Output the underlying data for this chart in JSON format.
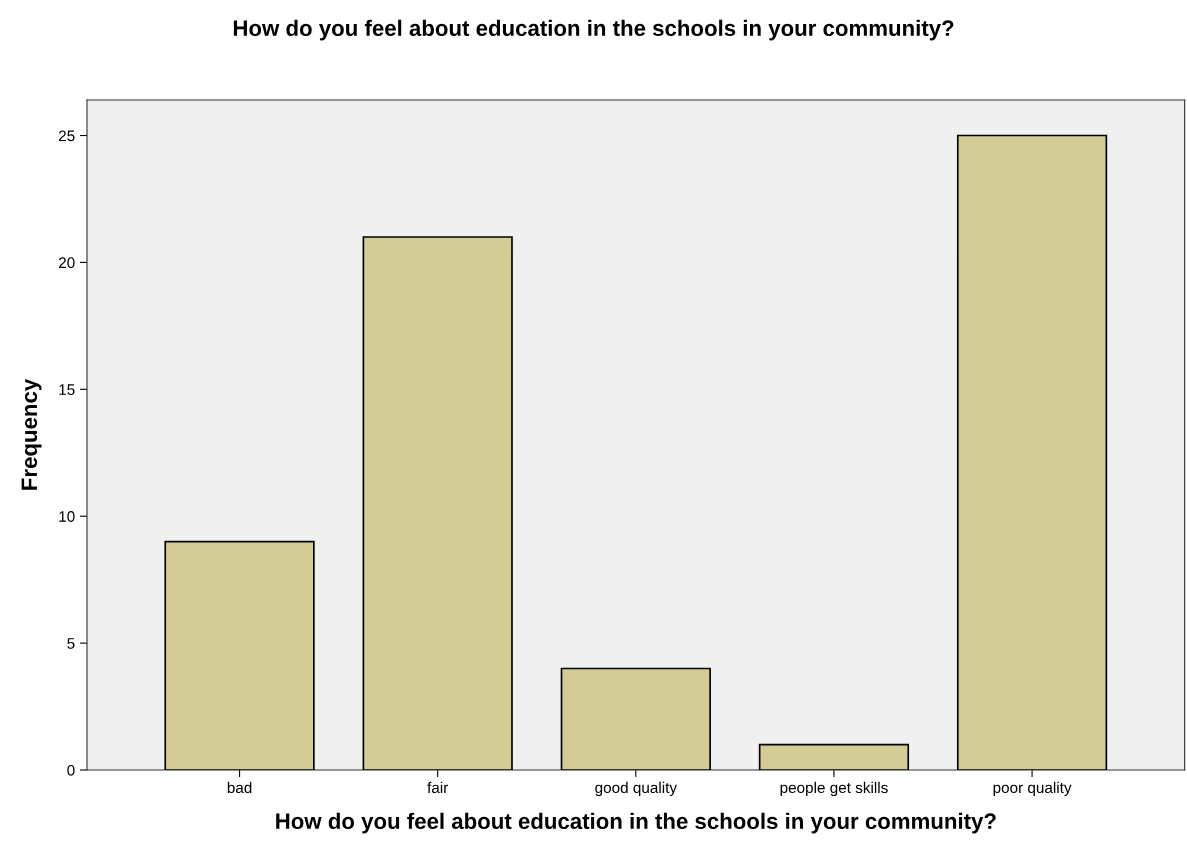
{
  "chart_data": {
    "type": "bar",
    "title": "How do you feel about education in the schools in your community?",
    "xlabel": "How do you feel about education in the schools in your community?",
    "ylabel": "Frequency",
    "categories": [
      "bad",
      "fair",
      "good quality",
      "people get skills",
      "poor quality"
    ],
    "values": [
      9,
      21,
      4,
      1,
      25
    ],
    "color": "#d3cd95",
    "ylim": [
      0,
      26.4
    ],
    "yticks": [
      0,
      5,
      10,
      15,
      20,
      25
    ],
    "grid": false,
    "legend": false
  }
}
